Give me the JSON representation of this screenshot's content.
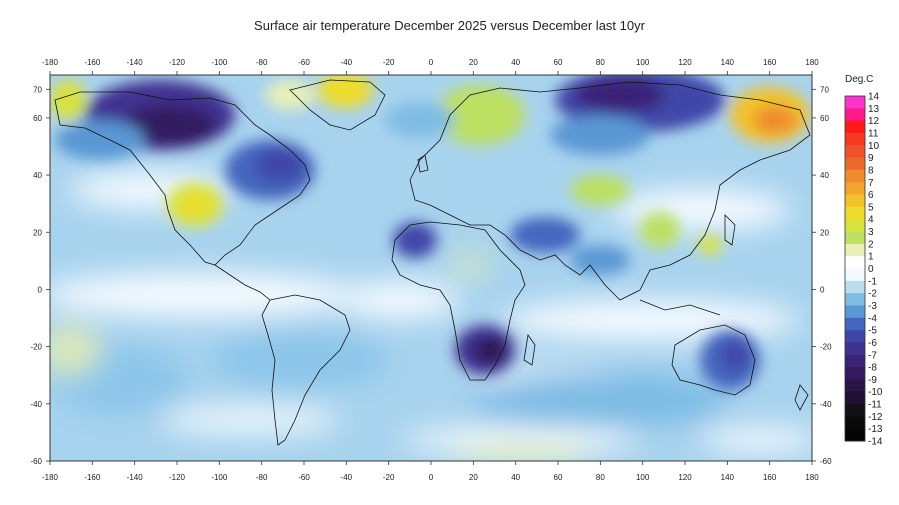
{
  "title": "Surface air temperature December 2025 versus December last 10yr",
  "map": {
    "lon_range": [
      -180,
      180
    ],
    "lat_range": [
      -60,
      75
    ],
    "lon_ticks": [
      "-180",
      "-160",
      "-140",
      "-120",
      "-100",
      "-80",
      "-60",
      "-40",
      "-20",
      "0",
      "20",
      "40",
      "60",
      "80",
      "100",
      "120",
      "140",
      "160",
      "180"
    ],
    "lat_ticks": [
      "70",
      "60",
      "40",
      "20",
      "0",
      "-20",
      "-40",
      "-60"
    ]
  },
  "colorbar": {
    "unit": "Deg.C",
    "labels": [
      "14",
      "13",
      "12",
      "11",
      "10",
      "9",
      "8",
      "7",
      "6",
      "5",
      "4",
      "3",
      "2",
      "1",
      "0",
      "-1",
      "-2",
      "-3",
      "-4",
      "-5",
      "-6",
      "-7",
      "-8",
      "-9",
      "-10",
      "-11",
      "-12",
      "-13",
      "-14"
    ],
    "colors": [
      "#ff33cc",
      "#ff1a8c",
      "#ff1a1a",
      "#f53a1f",
      "#f0522a",
      "#ed6a2e",
      "#f08a2e",
      "#f2a52a",
      "#f2c22a",
      "#eedc2a",
      "#d9e23a",
      "#bde062",
      "#e8f0b8",
      "#ffffff",
      "#f4f9fc",
      "#b9dcef",
      "#7fbce2",
      "#5a98d4",
      "#4466be",
      "#3f46a8",
      "#3f3290",
      "#3a2478",
      "#331a60",
      "#2a1448",
      "#1e0f33",
      "#141018",
      "#0a0a0a",
      "#050505"
    ]
  },
  "anomaly_regions": [
    {
      "name": "alaska-canada-cold",
      "lon": -125,
      "lat": 62,
      "value": -7
    },
    {
      "name": "hudson-cold",
      "lon": -90,
      "lat": 48,
      "value": -6
    },
    {
      "name": "greenland-warm",
      "lon": -42,
      "lat": 70,
      "value": 4
    },
    {
      "name": "us-southwest-warm",
      "lon": -112,
      "lat": 38,
      "value": 4
    },
    {
      "name": "siberia-cold",
      "lon": 95,
      "lat": 66,
      "value": -6
    },
    {
      "name": "east-siberia-warm",
      "lon": 160,
      "lat": 65,
      "value": 6
    },
    {
      "name": "scandinavia-warm",
      "lon": 25,
      "lat": 65,
      "value": 2
    },
    {
      "name": "southern-africa-cold",
      "lon": 25,
      "lat": -20,
      "value": -8
    },
    {
      "name": "nw-africa-cold",
      "lon": -5,
      "lat": 30,
      "value": -5
    },
    {
      "name": "middle-east-cold",
      "lon": 50,
      "lat": 32,
      "value": -4
    },
    {
      "name": "australia-cold",
      "lon": 140,
      "lat": -25,
      "value": -4
    },
    {
      "name": "central-asia-warm",
      "lon": 70,
      "lat": 45,
      "value": 2
    }
  ]
}
